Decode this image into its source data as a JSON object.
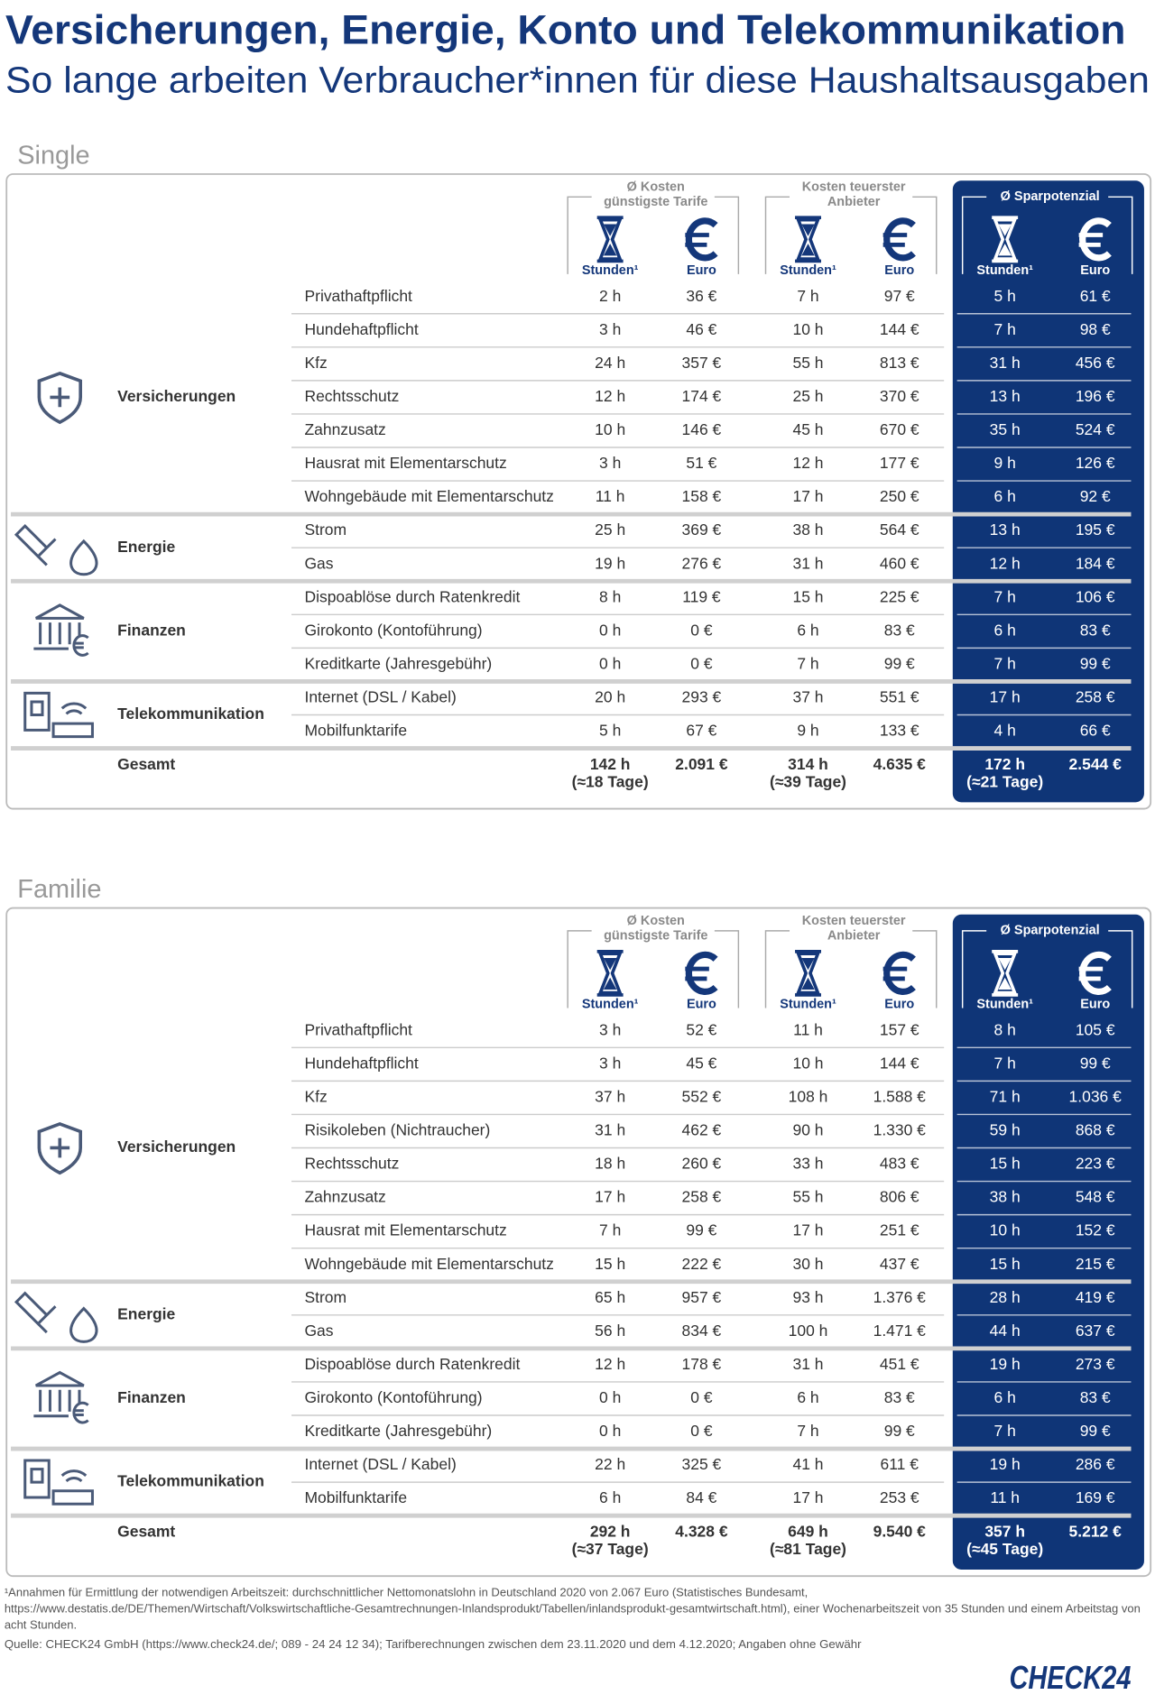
{
  "title": "Versicherungen, Energie, Konto und Telekommunikation",
  "subtitle": "So lange arbeiten Verbraucher*innen für diese Haushaltsausgaben",
  "column_groups": [
    [
      "Ø Kosten",
      "günstigste Tarife"
    ],
    [
      "Kosten teuerster",
      "Anbieter"
    ],
    [
      "Ø Sparpotenzial"
    ]
  ],
  "column_units": [
    "Stunden¹",
    "Euro"
  ],
  "sections": [
    {
      "name": "Single",
      "groups": [
        {
          "name": "Versicherungen",
          "rows": [
            {
              "label": "Privathaftpflicht",
              "cells": [
                "2 h",
                "36 €",
                "7 h",
                "97 €",
                "5 h",
                "61 €"
              ]
            },
            {
              "label": "Hundehaftpflicht",
              "cells": [
                "3 h",
                "46 €",
                "10 h",
                "144 €",
                "7 h",
                "98 €"
              ]
            },
            {
              "label": "Kfz",
              "cells": [
                "24 h",
                "357 €",
                "55 h",
                "813 €",
                "31 h",
                "456 €"
              ]
            },
            {
              "label": "Rechtsschutz",
              "cells": [
                "12 h",
                "174 €",
                "25 h",
                "370 €",
                "13 h",
                "196 €"
              ]
            },
            {
              "label": "Zahnzusatz",
              "cells": [
                "10 h",
                "146 €",
                "45 h",
                "670 €",
                "35 h",
                "524 €"
              ]
            },
            {
              "label": "Hausrat mit Elementarschutz",
              "cells": [
                "3 h",
                "51 €",
                "12 h",
                "177 €",
                "9 h",
                "126 €"
              ]
            },
            {
              "label": "Wohngebäude mit Elementarschutz",
              "cells": [
                "11 h",
                "158 €",
                "17 h",
                "250 €",
                "6 h",
                "92 €"
              ]
            }
          ]
        },
        {
          "name": "Energie",
          "rows": [
            {
              "label": "Strom",
              "cells": [
                "25 h",
                "369 €",
                "38 h",
                "564 €",
                "13 h",
                "195 €"
              ]
            },
            {
              "label": "Gas",
              "cells": [
                "19 h",
                "276 €",
                "31 h",
                "460 €",
                "12 h",
                "184 €"
              ]
            }
          ]
        },
        {
          "name": "Finanzen",
          "rows": [
            {
              "label": "Dispoablöse durch Ratenkredit",
              "cells": [
                "8 h",
                "119 €",
                "15 h",
                "225 €",
                "7 h",
                "106 €"
              ]
            },
            {
              "label": "Girokonto (Kontoführung)",
              "cells": [
                "0 h",
                "0 €",
                "6 h",
                "83 €",
                "6 h",
                "83 €"
              ]
            },
            {
              "label": "Kreditkarte (Jahresgebühr)",
              "cells": [
                "0 h",
                "0 €",
                "7 h",
                "99 €",
                "7 h",
                "99 €"
              ]
            }
          ]
        },
        {
          "name": "Telekommunikation",
          "rows": [
            {
              "label": "Internet (DSL / Kabel)",
              "cells": [
                "20 h",
                "293 €",
                "37 h",
                "551 €",
                "17 h",
                "258 €"
              ]
            },
            {
              "label": "Mobilfunktarife",
              "cells": [
                "5 h",
                "67 €",
                "9 h",
                "133 €",
                "4 h",
                "66 €"
              ]
            }
          ]
        }
      ],
      "total": {
        "label": "Gesamt",
        "hours": [
          "142 h",
          "314 h",
          "172 h"
        ],
        "days": [
          "(≈18 Tage)",
          "(≈39 Tage)",
          "(≈21 Tage)"
        ],
        "euro": [
          "2.091 €",
          "4.635 €",
          "2.544 €"
        ]
      }
    },
    {
      "name": "Familie",
      "groups": [
        {
          "name": "Versicherungen",
          "rows": [
            {
              "label": "Privathaftpflicht",
              "cells": [
                "3 h",
                "52 €",
                "11 h",
                "157 €",
                "8 h",
                "105 €"
              ]
            },
            {
              "label": "Hundehaftpflicht",
              "cells": [
                "3 h",
                "45 €",
                "10 h",
                "144 €",
                "7 h",
                "99 €"
              ]
            },
            {
              "label": "Kfz",
              "cells": [
                "37 h",
                "552 €",
                "108 h",
                "1.588 €",
                "71 h",
                "1.036 €"
              ]
            },
            {
              "label": "Risikoleben (Nichtraucher)",
              "cells": [
                "31 h",
                "462 €",
                "90 h",
                "1.330 €",
                "59 h",
                "868 €"
              ]
            },
            {
              "label": "Rechtsschutz",
              "cells": [
                "18 h",
                "260 €",
                "33 h",
                "483 €",
                "15 h",
                "223 €"
              ]
            },
            {
              "label": "Zahnzusatz",
              "cells": [
                "17 h",
                "258 €",
                "55 h",
                "806 €",
                "38 h",
                "548 €"
              ]
            },
            {
              "label": "Hausrat mit Elementarschutz",
              "cells": [
                "7 h",
                "99 €",
                "17 h",
                "251 €",
                "10 h",
                "152 €"
              ]
            },
            {
              "label": "Wohngebäude mit Elementarschutz",
              "cells": [
                "15 h",
                "222 €",
                "30 h",
                "437 €",
                "15 h",
                "215 €"
              ]
            }
          ]
        },
        {
          "name": "Energie",
          "rows": [
            {
              "label": "Strom",
              "cells": [
                "65 h",
                "957 €",
                "93 h",
                "1.376 €",
                "28 h",
                "419 €"
              ]
            },
            {
              "label": "Gas",
              "cells": [
                "56 h",
                "834 €",
                "100 h",
                "1.471 €",
                "44 h",
                "637 €"
              ]
            }
          ]
        },
        {
          "name": "Finanzen",
          "rows": [
            {
              "label": "Dispoablöse durch Ratenkredit",
              "cells": [
                "12 h",
                "178 €",
                "31 h",
                "451 €",
                "19 h",
                "273 €"
              ]
            },
            {
              "label": "Girokonto (Kontoführung)",
              "cells": [
                "0 h",
                "0 €",
                "6 h",
                "83 €",
                "6 h",
                "83 €"
              ]
            },
            {
              "label": "Kreditkarte (Jahresgebühr)",
              "cells": [
                "0 h",
                "0 €",
                "7 h",
                "99 €",
                "7 h",
                "99 €"
              ]
            }
          ]
        },
        {
          "name": "Telekommunikation",
          "rows": [
            {
              "label": "Internet (DSL / Kabel)",
              "cells": [
                "22 h",
                "325 €",
                "41 h",
                "611 €",
                "19 h",
                "286 €"
              ]
            },
            {
              "label": "Mobilfunktarife",
              "cells": [
                "6 h",
                "84 €",
                "17 h",
                "253 €",
                "11 h",
                "169 €"
              ]
            }
          ]
        }
      ],
      "total": {
        "label": "Gesamt",
        "hours": [
          "292 h",
          "649 h",
          "357 h"
        ],
        "days": [
          "(≈37 Tage)",
          "(≈81 Tage)",
          "(≈45 Tage)"
        ],
        "euro": [
          "4.328 €",
          "9.540 €",
          "5.212 €"
        ]
      }
    }
  ],
  "footnote": "¹Annahmen für Ermittlung der notwendigen Arbeitszeit: durchschnittlicher Nettomonatslohn in Deutschland 2020 von 2.067 Euro (Statistisches Bundesamt, https://www.destatis.de/DE/Themen/Wirtschaft/Volkswirtschaftliche-Gesamtrechnungen-Inlandsprodukt/Tabellen/inlandsprodukt-gesamtwirtschaft.html), einer Wochenarbeitszeit von 35 Stunden und einem Arbeitstag von acht Stunden.",
  "source": "Quelle: CHECK24 GmbH (https://www.check24.de/; 089 - 24 24 12 34); Tarifberechnungen zwischen dem 23.11.2020 und dem 4.12.2020; Angaben ohne Gewähr",
  "logo": "CHECK24"
}
